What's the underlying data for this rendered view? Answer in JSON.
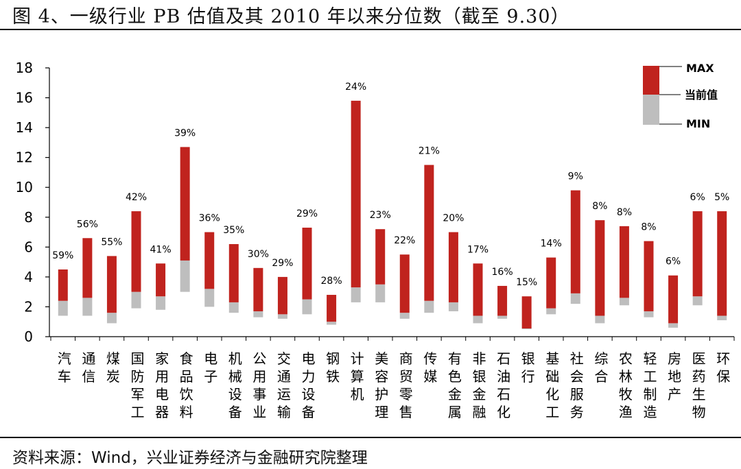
{
  "title": "图 4、一级行业 PB 估值及其 2010 年以来分位数（截至 9.30）",
  "source": "资料来源：Wind，兴业证券经济与金融研究院整理",
  "colors": {
    "range_above_current": "#C0231E",
    "range_below_current": "#BEBEBE"
  },
  "chart_data": {
    "type": "bar",
    "ylim": [
      0,
      18
    ],
    "yticks": [
      0,
      2,
      4,
      6,
      8,
      10,
      12,
      14,
      16,
      18
    ],
    "legend": {
      "max": "MAX",
      "current": "当前值",
      "min": "MIN"
    },
    "categories": [
      "汽车",
      "通信",
      "煤炭",
      "国防军工",
      "家用电器",
      "食品饮料",
      "电子",
      "机械设备",
      "公用事业",
      "交通运输",
      "电力设备",
      "钢铁",
      "计算机",
      "美容护理",
      "商贸零售",
      "传媒",
      "有色金属",
      "非银金融",
      "石油石化",
      "银行",
      "基础化工",
      "社会服务",
      "综合",
      "农林牧渔",
      "轻工制造",
      "房地产",
      "医药生物",
      "环保"
    ],
    "max": [
      4.5,
      6.6,
      5.4,
      8.4,
      4.9,
      12.7,
      7.0,
      6.2,
      4.6,
      4.0,
      7.3,
      2.8,
      15.8,
      7.2,
      5.5,
      11.5,
      7.0,
      4.9,
      3.4,
      2.7,
      5.3,
      9.8,
      7.8,
      7.4,
      6.4,
      4.1,
      8.4,
      8.4
    ],
    "current": [
      2.4,
      2.6,
      1.6,
      3.0,
      2.7,
      5.1,
      3.2,
      2.3,
      1.7,
      1.5,
      2.5,
      1.0,
      3.3,
      3.5,
      1.6,
      2.4,
      2.3,
      1.4,
      1.4,
      0.55,
      1.9,
      2.9,
      1.4,
      2.6,
      1.7,
      0.9,
      2.7,
      1.4
    ],
    "min": [
      1.4,
      1.4,
      0.9,
      1.9,
      1.8,
      3.0,
      2.0,
      1.6,
      1.3,
      1.2,
      1.5,
      0.8,
      2.3,
      2.3,
      1.2,
      1.6,
      1.7,
      0.9,
      1.2,
      0.5,
      1.5,
      2.2,
      0.9,
      2.1,
      1.3,
      0.6,
      2.1,
      1.1
    ],
    "percentile_labels": [
      "59%",
      "56%",
      "55%",
      "42%",
      "41%",
      "39%",
      "36%",
      "35%",
      "30%",
      "29%",
      "29%",
      "28%",
      "24%",
      "23%",
      "22%",
      "21%",
      "20%",
      "17%",
      "16%",
      "15%",
      "14%",
      "9%",
      "8%",
      "8%",
      "8%",
      "6%",
      "6%",
      "5%"
    ]
  }
}
